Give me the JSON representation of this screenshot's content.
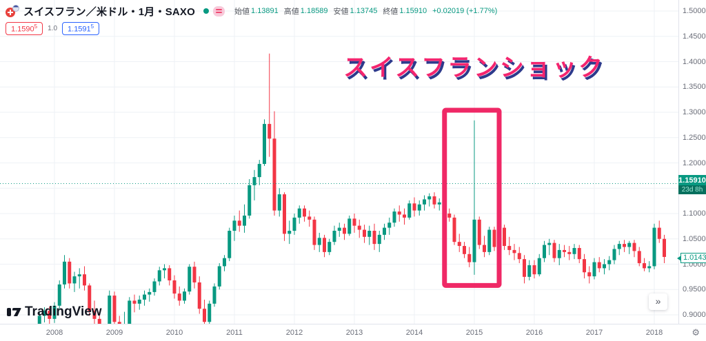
{
  "header": {
    "symbol_title": "スイスフラン／米ドル・1月・SAXO",
    "ohlc": {
      "open_label": "始値",
      "open": "1.13891",
      "high_label": "高値",
      "high": "1.18589",
      "low_label": "安値",
      "low": "1.13745",
      "close_label": "終値",
      "close": "1.15910",
      "change": "+0.02019 (+1.77%)"
    },
    "quote": {
      "bid": "1.1590",
      "bid_sup": "5",
      "spread": "1.0",
      "ask": "1.1591",
      "ask_sup": "5"
    }
  },
  "annotation": {
    "text": "スイスフランショック"
  },
  "watermark": {
    "text": "TradingView"
  },
  "buttons": {
    "scroll_to_recent": "»",
    "axis_settings_icon": "⚙"
  },
  "price_scale": {
    "current_price": "1.15910",
    "countdown": "23d 8h",
    "last_price": "1.01434",
    "ticks": [
      {
        "label": "1.50000",
        "value": 1.5
      },
      {
        "label": "1.45000",
        "value": 1.45
      },
      {
        "label": "1.40000",
        "value": 1.4
      },
      {
        "label": "1.35000",
        "value": 1.35
      },
      {
        "label": "1.30000",
        "value": 1.3
      },
      {
        "label": "1.25000",
        "value": 1.25
      },
      {
        "label": "1.20000",
        "value": 1.2
      },
      {
        "label": "1.10000",
        "value": 1.1
      },
      {
        "label": "1.05000",
        "value": 1.05
      },
      {
        "label": "1.00000",
        "value": 1.0
      },
      {
        "label": "0.95000",
        "value": 0.95
      },
      {
        "label": "0.90000",
        "value": 0.9
      }
    ]
  },
  "time_scale": {
    "ticks": [
      "2008",
      "2009",
      "2010",
      "2011",
      "2012",
      "2013",
      "2014",
      "2015",
      "2016",
      "2017",
      "2018"
    ]
  },
  "colors": {
    "up": "#089981",
    "down": "#f23645",
    "grid": "#eef1f6",
    "axis_text": "#6a6d78",
    "badge_bg": "#089981",
    "annotation_pink": "#f4256f",
    "highlight_box": "#ef2866",
    "bid_red": "#f23645",
    "ask_blue": "#2962ff"
  },
  "chart_data": {
    "type": "candlestick",
    "title": "スイスフラン／米ドル・1月・SAXO",
    "interval": "1M",
    "ylim": [
      0.862,
      1.5
    ],
    "grid_prices": [
      0.9,
      0.95,
      1.0,
      1.05,
      1.1,
      1.15,
      1.2,
      1.25,
      1.3,
      1.35,
      1.4,
      1.45,
      1.5
    ],
    "current_price_line": 1.1591,
    "last_close": 1.01434,
    "highlight_box": {
      "time_from": "2014-08",
      "time_to": "2015-05",
      "price_low": 0.958,
      "price_high": 1.304
    },
    "candles": [
      [
        "2007-10",
        0.88,
        0.905,
        0.872,
        0.898
      ],
      [
        "2007-11",
        0.898,
        0.915,
        0.885,
        0.908
      ],
      [
        "2007-12",
        0.908,
        0.916,
        0.882,
        0.892
      ],
      [
        "2008-01",
        0.892,
        0.925,
        0.884,
        0.918
      ],
      [
        "2008-02",
        0.918,
        0.968,
        0.91,
        0.96
      ],
      [
        "2008-03",
        0.96,
        1.018,
        0.952,
        1.005
      ],
      [
        "2008-04",
        1.005,
        1.012,
        0.952,
        0.962
      ],
      [
        "2008-05",
        0.962,
        0.985,
        0.945,
        0.976
      ],
      [
        "2008-06",
        0.976,
        0.992,
        0.952,
        0.98
      ],
      [
        "2008-07",
        0.98,
        0.996,
        0.948,
        0.958
      ],
      [
        "2008-08",
        0.958,
        0.962,
        0.898,
        0.908
      ],
      [
        "2008-09",
        0.908,
        0.928,
        0.872,
        0.892
      ],
      [
        "2008-10",
        0.892,
        0.906,
        0.848,
        0.866
      ],
      [
        "2008-11",
        0.866,
        0.882,
        0.842,
        0.858
      ],
      [
        "2008-12",
        0.858,
        0.948,
        0.852,
        0.938
      ],
      [
        "2009-01",
        0.938,
        0.946,
        0.878,
        0.886
      ],
      [
        "2009-02",
        0.886,
        0.898,
        0.848,
        0.862
      ],
      [
        "2009-03",
        0.862,
        0.906,
        0.842,
        0.882
      ],
      [
        "2009-04",
        0.882,
        0.935,
        0.868,
        0.928
      ],
      [
        "2009-05",
        0.928,
        0.94,
        0.905,
        0.922
      ],
      [
        "2009-06",
        0.922,
        0.938,
        0.91,
        0.93
      ],
      [
        "2009-07",
        0.93,
        0.948,
        0.918,
        0.94
      ],
      [
        "2009-08",
        0.94,
        0.952,
        0.926,
        0.945
      ],
      [
        "2009-09",
        0.945,
        0.972,
        0.938,
        0.966
      ],
      [
        "2009-10",
        0.966,
        0.995,
        0.958,
        0.988
      ],
      [
        "2009-11",
        0.988,
        1.0,
        0.972,
        0.992
      ],
      [
        "2009-12",
        0.992,
        0.998,
        0.958,
        0.968
      ],
      [
        "2010-01",
        0.968,
        0.978,
        0.932,
        0.942
      ],
      [
        "2010-02",
        0.942,
        0.956,
        0.918,
        0.928
      ],
      [
        "2010-03",
        0.928,
        0.952,
        0.922,
        0.946
      ],
      [
        "2010-04",
        0.946,
        1.0,
        0.94,
        0.995
      ],
      [
        "2010-05",
        0.995,
        1.005,
        0.952,
        0.964
      ],
      [
        "2010-06",
        0.964,
        0.976,
        0.902,
        0.912
      ],
      [
        "2010-07",
        0.912,
        0.93,
        0.876,
        0.886
      ],
      [
        "2010-08",
        0.886,
        0.928,
        0.88,
        0.922
      ],
      [
        "2010-09",
        0.922,
        0.962,
        0.916,
        0.956
      ],
      [
        "2010-10",
        0.956,
        1.002,
        0.95,
        0.996
      ],
      [
        "2010-11",
        0.996,
        1.018,
        0.986,
        1.012
      ],
      [
        "2010-12",
        1.012,
        1.072,
        1.006,
        1.066
      ],
      [
        "2011-01",
        1.066,
        1.096,
        1.046,
        1.086
      ],
      [
        "2011-02",
        1.086,
        1.106,
        1.064,
        1.076
      ],
      [
        "2011-03",
        1.076,
        1.118,
        1.062,
        1.096
      ],
      [
        "2011-04",
        1.096,
        1.168,
        1.09,
        1.156
      ],
      [
        "2011-05",
        1.156,
        1.186,
        1.126,
        1.172
      ],
      [
        "2011-06",
        1.172,
        1.206,
        1.156,
        1.198
      ],
      [
        "2011-07",
        1.198,
        1.286,
        1.194,
        1.277
      ],
      [
        "2011-08",
        1.277,
        1.416,
        1.212,
        1.248
      ],
      [
        "2011-09",
        1.248,
        1.302,
        1.096,
        1.106
      ],
      [
        "2011-10",
        1.106,
        1.15,
        1.094,
        1.138
      ],
      [
        "2011-11",
        1.138,
        1.142,
        1.046,
        1.06
      ],
      [
        "2011-12",
        1.06,
        1.086,
        1.04,
        1.066
      ],
      [
        "2012-01",
        1.066,
        1.1,
        1.058,
        1.092
      ],
      [
        "2012-02",
        1.092,
        1.116,
        1.08,
        1.11
      ],
      [
        "2012-03",
        1.11,
        1.116,
        1.084,
        1.094
      ],
      [
        "2012-04",
        1.094,
        1.106,
        1.074,
        1.088
      ],
      [
        "2012-05",
        1.088,
        1.094,
        1.028,
        1.038
      ],
      [
        "2012-06",
        1.038,
        1.062,
        1.024,
        1.052
      ],
      [
        "2012-07",
        1.052,
        1.058,
        1.014,
        1.024
      ],
      [
        "2012-08",
        1.024,
        1.05,
        1.018,
        1.044
      ],
      [
        "2012-09",
        1.044,
        1.076,
        1.038,
        1.066
      ],
      [
        "2012-10",
        1.066,
        1.082,
        1.054,
        1.072
      ],
      [
        "2012-11",
        1.072,
        1.08,
        1.048,
        1.06
      ],
      [
        "2012-12",
        1.06,
        1.096,
        1.056,
        1.09
      ],
      [
        "2013-01",
        1.09,
        1.1,
        1.062,
        1.076
      ],
      [
        "2013-02",
        1.076,
        1.088,
        1.052,
        1.068
      ],
      [
        "2013-03",
        1.068,
        1.078,
        1.042,
        1.054
      ],
      [
        "2013-04",
        1.054,
        1.076,
        1.038,
        1.066
      ],
      [
        "2013-05",
        1.066,
        1.08,
        1.028,
        1.04
      ],
      [
        "2013-06",
        1.04,
        1.066,
        1.024,
        1.058
      ],
      [
        "2013-07",
        1.058,
        1.08,
        1.048,
        1.072
      ],
      [
        "2013-08",
        1.072,
        1.092,
        1.058,
        1.082
      ],
      [
        "2013-09",
        1.082,
        1.11,
        1.074,
        1.104
      ],
      [
        "2013-10",
        1.104,
        1.116,
        1.084,
        1.098
      ],
      [
        "2013-11",
        1.098,
        1.11,
        1.078,
        1.092
      ],
      [
        "2013-12",
        1.092,
        1.126,
        1.088,
        1.12
      ],
      [
        "2014-01",
        1.12,
        1.132,
        1.094,
        1.106
      ],
      [
        "2014-02",
        1.106,
        1.126,
        1.096,
        1.118
      ],
      [
        "2014-03",
        1.118,
        1.136,
        1.106,
        1.128
      ],
      [
        "2014-04",
        1.128,
        1.14,
        1.114,
        1.134
      ],
      [
        "2014-05",
        1.134,
        1.142,
        1.11,
        1.118
      ],
      [
        "2014-06",
        1.118,
        1.13,
        1.106,
        1.122
      ],
      [
        "2014-07",
        1.122,
        1.128,
        1.094,
        1.1
      ],
      [
        "2014-08",
        1.1,
        1.11,
        1.084,
        1.092
      ],
      [
        "2014-09",
        1.092,
        1.098,
        1.038,
        1.044
      ],
      [
        "2014-10",
        1.044,
        1.06,
        1.024,
        1.036
      ],
      [
        "2014-11",
        1.036,
        1.044,
        1.012,
        1.02
      ],
      [
        "2014-12",
        1.02,
        1.034,
        0.994,
        1.004
      ],
      [
        "2015-01",
        1.004,
        1.284,
        0.979,
        1.088
      ],
      [
        "2015-02",
        1.088,
        1.094,
        1.03,
        1.038
      ],
      [
        "2015-03",
        1.038,
        1.056,
        1.014,
        1.024
      ],
      [
        "2015-04",
        1.024,
        1.074,
        1.018,
        1.068
      ],
      [
        "2015-05",
        1.068,
        1.074,
        1.026,
        1.034
      ],
      [
        "2015-06",
        1.034,
        1.084,
        1.028,
        1.072
      ],
      [
        "2015-07",
        1.072,
        1.078,
        1.028,
        1.036
      ],
      [
        "2015-08",
        1.036,
        1.054,
        1.018,
        1.028
      ],
      [
        "2015-09",
        1.028,
        1.04,
        1.008,
        1.022
      ],
      [
        "2015-10",
        1.022,
        1.034,
        1.002,
        1.01
      ],
      [
        "2015-11",
        1.01,
        1.018,
        0.962,
        0.975
      ],
      [
        "2015-12",
        0.975,
        1.008,
        0.968,
        0.998
      ],
      [
        "2016-01",
        0.998,
        1.008,
        0.972,
        0.98
      ],
      [
        "2016-02",
        0.98,
        1.02,
        0.976,
        1.012
      ],
      [
        "2016-03",
        1.012,
        1.046,
        1.004,
        1.038
      ],
      [
        "2016-04",
        1.038,
        1.05,
        1.018,
        1.042
      ],
      [
        "2016-05",
        1.042,
        1.048,
        1.004,
        1.012
      ],
      [
        "2016-06",
        1.012,
        1.04,
        0.998,
        1.028
      ],
      [
        "2016-07",
        1.028,
        1.038,
        1.014,
        1.024
      ],
      [
        "2016-08",
        1.024,
        1.036,
        1.008,
        1.02
      ],
      [
        "2016-09",
        1.02,
        1.04,
        1.01,
        1.032
      ],
      [
        "2016-10",
        1.032,
        1.038,
        1.002,
        1.01
      ],
      [
        "2016-11",
        1.01,
        1.02,
        0.972,
        0.984
      ],
      [
        "2016-12",
        0.984,
        0.996,
        0.962,
        0.976
      ],
      [
        "2017-01",
        0.976,
        1.012,
        0.97,
        1.004
      ],
      [
        "2017-02",
        1.004,
        1.014,
        0.984,
        0.992
      ],
      [
        "2017-03",
        0.992,
        1.01,
        0.98,
        1.0
      ],
      [
        "2017-04",
        1.0,
        1.016,
        0.988,
        1.008
      ],
      [
        "2017-05",
        1.008,
        1.038,
        1.0,
        1.03
      ],
      [
        "2017-06",
        1.03,
        1.046,
        1.018,
        1.04
      ],
      [
        "2017-07",
        1.04,
        1.048,
        1.024,
        1.034
      ],
      [
        "2017-08",
        1.034,
        1.046,
        1.02,
        1.042
      ],
      [
        "2017-09",
        1.042,
        1.048,
        1.014,
        1.026
      ],
      [
        "2017-10",
        1.026,
        1.034,
        0.996,
        1.002
      ],
      [
        "2017-11",
        1.002,
        1.012,
        0.986,
        0.992
      ],
      [
        "2017-12",
        0.992,
        1.006,
        0.984,
        0.996
      ],
      [
        "2018-01",
        0.996,
        1.08,
        0.99,
        1.072
      ],
      [
        "2018-02",
        1.072,
        1.086,
        1.042,
        1.05
      ],
      [
        "2018-03",
        1.05,
        1.058,
        1.002,
        1.01434
      ]
    ]
  }
}
